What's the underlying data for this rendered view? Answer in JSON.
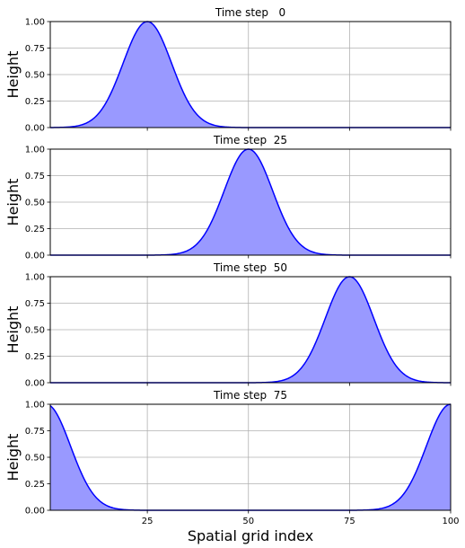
{
  "chart_data": [
    {
      "type": "area",
      "title": "Time step   0",
      "ylabel": "Height",
      "xlim": [
        1,
        100
      ],
      "ylim": [
        0,
        1
      ],
      "yticks": [
        0.0,
        0.25,
        0.5,
        0.75,
        1.0
      ],
      "ytick_labels": [
        "0.00",
        "0.25",
        "0.50",
        "0.75",
        "1.00"
      ],
      "xticks": [
        25,
        50,
        75,
        100
      ],
      "grid": true,
      "series": [
        {
          "profile": "gaussian",
          "peak_x": 25,
          "peak_height": 1.0,
          "sigma": 6
        }
      ]
    },
    {
      "type": "area",
      "title": "Time step  25",
      "ylabel": "Height",
      "xlim": [
        1,
        100
      ],
      "ylim": [
        0,
        1
      ],
      "yticks": [
        0.0,
        0.25,
        0.5,
        0.75,
        1.0
      ],
      "ytick_labels": [
        "0.00",
        "0.25",
        "0.50",
        "0.75",
        "1.00"
      ],
      "xticks": [
        25,
        50,
        75,
        100
      ],
      "grid": true,
      "series": [
        {
          "profile": "gaussian",
          "peak_x": 50,
          "peak_height": 1.0,
          "sigma": 6
        }
      ]
    },
    {
      "type": "area",
      "title": "Time step  50",
      "ylabel": "Height",
      "xlim": [
        1,
        100
      ],
      "ylim": [
        0,
        1
      ],
      "yticks": [
        0.0,
        0.25,
        0.5,
        0.75,
        1.0
      ],
      "ytick_labels": [
        "0.00",
        "0.25",
        "0.50",
        "0.75",
        "1.00"
      ],
      "xticks": [
        25,
        50,
        75,
        100
      ],
      "grid": true,
      "series": [
        {
          "profile": "gaussian",
          "peak_x": 75,
          "peak_height": 1.0,
          "sigma": 6
        }
      ]
    },
    {
      "type": "area",
      "title": "Time step  75",
      "ylabel": "Height",
      "xlabel": "Spatial grid index",
      "xlim": [
        1,
        100
      ],
      "ylim": [
        0,
        1
      ],
      "yticks": [
        0.0,
        0.25,
        0.5,
        0.75,
        1.0
      ],
      "ytick_labels": [
        "0.00",
        "0.25",
        "0.50",
        "0.75",
        "1.00"
      ],
      "xticks": [
        25,
        50,
        75,
        100
      ],
      "xtick_labels": [
        "25",
        "50",
        "75",
        "100"
      ],
      "grid": true,
      "series": [
        {
          "profile": "gaussian",
          "peak_x": 100,
          "peak_height": 1.0,
          "sigma": 6,
          "periodic": true
        }
      ]
    }
  ],
  "colors": {
    "line": "#0000ff",
    "fill": "#9999ff",
    "grid": "#b0b0b0",
    "axes": "#000000"
  }
}
